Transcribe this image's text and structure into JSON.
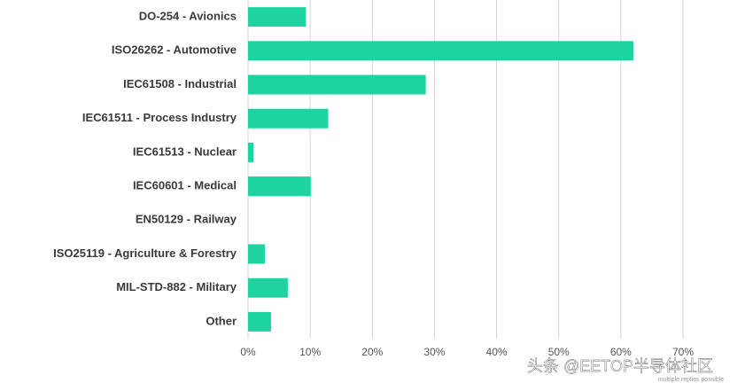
{
  "chart_data": {
    "type": "hbar",
    "categories": [
      "DO-254 - Avionics",
      "ISO26262 - Automotive",
      "IEC61508 - Industrial",
      "IEC61511 - Process Industry",
      "IEC61513 - Nuclear",
      "IEC60601 - Medical",
      "EN50129 - Railway",
      "ISO25119 - Agriculture & Forestry",
      "MIL-STD-882 - Military",
      "Other"
    ],
    "values": [
      9.3,
      62,
      28.6,
      12.9,
      0.9,
      10.1,
      0,
      2.7,
      6.4,
      3.7
    ],
    "color": "#1dd3a0",
    "xlim": [
      0,
      70
    ],
    "xticks": [
      {
        "value": 0,
        "label": "0%"
      },
      {
        "value": 10,
        "label": "10%"
      },
      {
        "value": 20,
        "label": "20%"
      },
      {
        "value": 30,
        "label": "30%"
      },
      {
        "value": 40,
        "label": "40%"
      },
      {
        "value": 50,
        "label": "50%"
      },
      {
        "value": 60,
        "label": "60%"
      },
      {
        "value": 70,
        "label": "70%"
      }
    ],
    "grid": true,
    "note": "multiple replies possible",
    "watermark": "头条 @EETOP半导体社区"
  }
}
